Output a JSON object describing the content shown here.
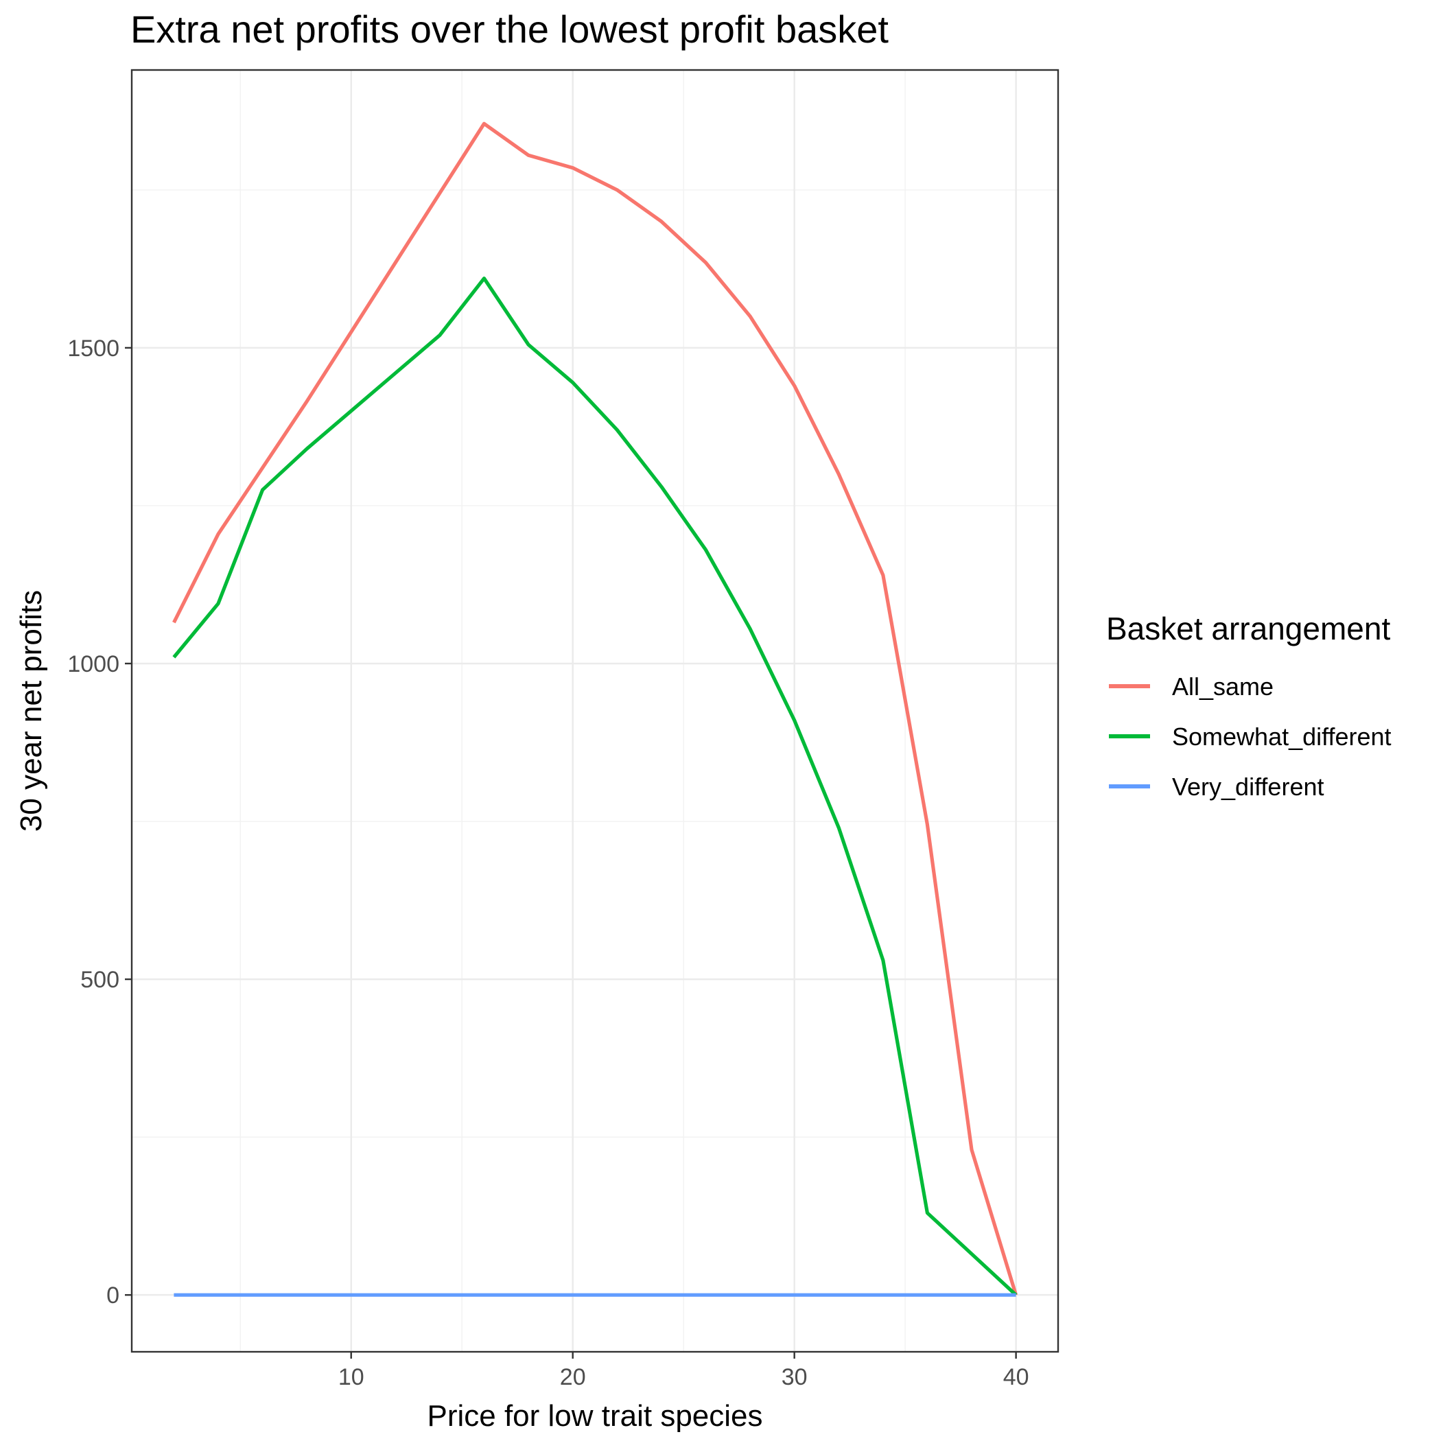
{
  "chart_data": {
    "type": "line",
    "title": "Extra net profits over the lowest profit basket",
    "xlabel": "Price for low trait species",
    "ylabel": "30 year net profits",
    "xlim": [
      0.1,
      41.9
    ],
    "ylim": [
      -90,
      1940
    ],
    "x_ticks": [
      10,
      20,
      30,
      40
    ],
    "x_tick_labels": [
      "10",
      "20",
      "30",
      "40"
    ],
    "y_ticks": [
      0,
      500,
      1000,
      1500
    ],
    "y_tick_labels": [
      "0",
      "500",
      "1000",
      "1500"
    ],
    "grid": true,
    "legend": {
      "title": "Basket arrangement",
      "position": "right"
    },
    "x": [
      2,
      4,
      6,
      8,
      10,
      12,
      14,
      16,
      18,
      20,
      22,
      24,
      26,
      28,
      30,
      32,
      34,
      36,
      38,
      40
    ],
    "series": [
      {
        "name": "All_same",
        "color": "#F8766D",
        "values": [
          1065,
          1205,
          1310,
          1415,
          1525,
          1635,
          1745,
          1855,
          1805,
          1785,
          1750,
          1700,
          1635,
          1550,
          1440,
          1300,
          1140,
          745,
          230,
          0
        ]
      },
      {
        "name": "Somewhat_different",
        "color": "#00BA38",
        "values": [
          1010,
          1095,
          1275,
          1340,
          1400,
          1460,
          1520,
          1610,
          1505,
          1445,
          1370,
          1280,
          1180,
          1055,
          910,
          740,
          530,
          130,
          65,
          0
        ]
      },
      {
        "name": "Very_different",
        "color": "#619CFF",
        "values": [
          0,
          0,
          0,
          0,
          0,
          0,
          0,
          0,
          0,
          0,
          0,
          0,
          0,
          0,
          0,
          0,
          0,
          0,
          0,
          0
        ]
      }
    ]
  }
}
